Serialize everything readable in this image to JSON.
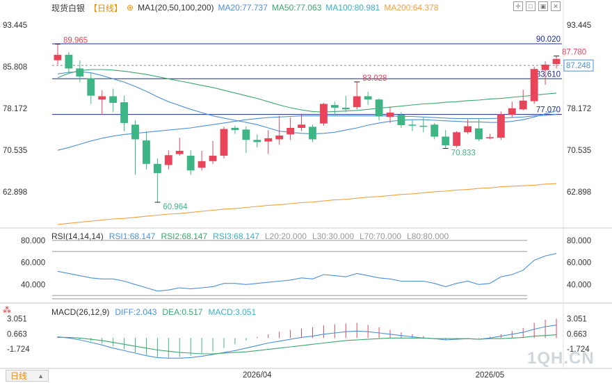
{
  "header": {
    "symbol": "现货白银",
    "timeframe": "【日线】",
    "timeframe_icon": "plus-circle-icon",
    "ma_label": "MA1(20,50,100,200)",
    "ma20": "MA20:77.737",
    "ma50": "MA50:77.063",
    "ma100": "MA100:80.981",
    "ma200": "MA200:64.378"
  },
  "rsi_header": {
    "title": "RSI(14,14,14)",
    "rsi1": "RSI1:68.147",
    "rsi2": "RSI2:68.147",
    "rsi3": "RSI3:68.147",
    "l20": "L20:20.000",
    "l30": "L30:30.000",
    "l70": "L70:70.000",
    "l80": "L80:80.000"
  },
  "macd_header": {
    "title": "MACD(26,12,9)",
    "diff": "DIFF:2.043",
    "dea": "DEA:0.517",
    "macd": "MACD:3.051"
  },
  "timeframe_tab": "日线",
  "watermark": "1QH.CN",
  "colors": {
    "up": "#e8455b",
    "down": "#3db585",
    "ma20": "#4a90d9",
    "ma50": "#3aa86b",
    "ma200": "#f0a040",
    "hline": "#1a2a9a"
  },
  "chart_data": [
    {
      "type": "candlestick",
      "title": "",
      "ylim": [
        56.5,
        95.5
      ],
      "y_ticks": [
        "93.445",
        "85.808",
        "78.172",
        "70.535",
        "62.898"
      ],
      "x_ticks": [
        {
          "label": "2026/04",
          "index": 18
        },
        {
          "label": "2026/05",
          "index": 39
        }
      ],
      "current_price": "87.248",
      "annotations": [
        {
          "text": "89.965",
          "index": 0,
          "value": 89.965
        },
        {
          "text": "60.964",
          "index": 9,
          "value": 60.964
        },
        {
          "text": "83.028",
          "index": 27,
          "value": 83.028
        },
        {
          "text": "70.833",
          "index": 35,
          "value": 70.833
        },
        {
          "text": "87.780",
          "index": 45,
          "value": 87.78
        }
      ],
      "hlines": [
        {
          "value": 90.02,
          "label": "90.020"
        },
        {
          "value": 83.61,
          "label": "83.610"
        },
        {
          "value": 77.07,
          "label": "77.070"
        }
      ],
      "candles": [
        [
          87.0,
          88.0,
          89.965,
          86.2
        ],
        [
          88.0,
          85.5,
          88.5,
          84.5
        ],
        [
          85.5,
          84.0,
          87.0,
          83.0
        ],
        [
          83.7,
          80.5,
          84.7,
          79.0
        ],
        [
          79.8,
          80.4,
          81.5,
          77.0
        ],
        [
          80.4,
          79.2,
          81.8,
          77.5
        ],
        [
          79.3,
          75.5,
          80.5,
          74.0
        ],
        [
          75.2,
          72.5,
          76.0,
          66.0
        ],
        [
          72.3,
          68.0,
          74.0,
          67.0
        ],
        [
          68.0,
          66.3,
          69.0,
          60.964
        ],
        [
          67.8,
          69.6,
          70.5,
          67.0
        ],
        [
          69.8,
          70.4,
          72.8,
          69.5
        ],
        [
          69.5,
          66.8,
          70.5,
          66.0
        ],
        [
          67.3,
          68.5,
          70.4,
          66.8
        ],
        [
          68.5,
          69.5,
          72.2,
          68.0
        ],
        [
          69.5,
          74.4,
          74.8,
          69.0
        ],
        [
          74.6,
          74.2,
          75.0,
          73.5
        ],
        [
          74.3,
          72.4,
          74.9,
          70.0
        ],
        [
          72.4,
          72.0,
          73.4,
          71.0
        ],
        [
          72.1,
          72.7,
          74.2,
          69.8
        ],
        [
          72.5,
          73.2,
          76.8,
          71.5
        ],
        [
          73.4,
          74.6,
          76.5,
          72.4
        ],
        [
          74.6,
          75.2,
          77.2,
          74.0
        ],
        [
          74.8,
          72.5,
          75.2,
          72.0
        ],
        [
          75.4,
          79.0,
          79.2,
          75.0
        ],
        [
          78.8,
          78.3,
          79.4,
          77.0
        ],
        [
          78.3,
          78.0,
          80.5,
          77.5
        ],
        [
          78.4,
          80.4,
          83.028,
          78.0
        ],
        [
          80.4,
          79.8,
          81.2,
          78.8
        ],
        [
          79.8,
          76.7,
          80.0,
          76.0
        ],
        [
          76.6,
          77.4,
          78.5,
          75.5
        ],
        [
          77.0,
          75.1,
          77.5,
          74.6
        ],
        [
          75.2,
          75.0,
          76.0,
          74.0
        ],
        [
          75.0,
          74.8,
          76.5,
          73.8
        ],
        [
          75.2,
          73.0,
          75.5,
          72.5
        ],
        [
          73.0,
          71.4,
          74.2,
          70.833
        ],
        [
          71.3,
          73.8,
          74.0,
          71.0
        ],
        [
          73.8,
          74.9,
          76.2,
          73.5
        ],
        [
          74.5,
          72.5,
          76.2,
          72.2
        ],
        [
          72.7,
          72.9,
          73.5,
          72.5
        ],
        [
          72.8,
          77.1,
          77.6,
          72.4
        ],
        [
          77.0,
          78.2,
          79.4,
          76.5
        ],
        [
          78.0,
          79.6,
          81.6,
          77.8
        ],
        [
          79.5,
          85.4,
          85.8,
          79.0
        ],
        [
          85.2,
          86.2,
          86.8,
          82.5
        ],
        [
          86.3,
          87.248,
          87.78,
          85.5
        ]
      ],
      "ma20": [
        84.5,
        84.8,
        84.9,
        84.7,
        84.2,
        83.6,
        83.0,
        82.2,
        81.3,
        80.3,
        79.4,
        78.7,
        78.0,
        77.4,
        76.8,
        76.4,
        76.0,
        75.6,
        75.2,
        74.6,
        74.0,
        73.8,
        73.6,
        73.5,
        73.6,
        73.8,
        74.2,
        74.6,
        75.1,
        75.5,
        75.8,
        76.0,
        76.1,
        76.1,
        76.0,
        75.9,
        75.8,
        75.7,
        75.7,
        75.6,
        75.6,
        75.8,
        76.1,
        76.6,
        77.2,
        77.737
      ],
      "ma50": [
        70.5,
        71.0,
        71.6,
        72.2,
        72.7,
        73.1,
        73.4,
        73.6,
        73.8,
        74.0,
        74.2,
        74.4,
        74.6,
        74.9,
        75.2,
        75.5,
        75.8,
        76.1,
        76.3,
        76.5,
        76.6,
        76.7,
        76.8,
        76.8,
        76.8,
        76.8,
        76.8,
        76.8,
        76.8,
        76.8,
        76.8,
        76.7,
        76.7,
        76.6,
        76.5,
        76.4,
        76.3,
        76.3,
        76.3,
        76.3,
        76.4,
        76.5,
        76.6,
        76.8,
        76.9,
        77.063
      ],
      "ma100": [
        83.8,
        84.6,
        85.1,
        85.3,
        85.3,
        85.2,
        85.0,
        84.7,
        84.4,
        84.0,
        83.6,
        83.2,
        82.8,
        82.4,
        82.0,
        81.5,
        81.0,
        80.5,
        80.0,
        79.4,
        78.8,
        78.3,
        77.9,
        77.6,
        77.5,
        77.6,
        77.7,
        77.8,
        78.0,
        78.2,
        78.4,
        78.6,
        78.8,
        79.0,
        79.1,
        79.3,
        79.4,
        79.6,
        79.7,
        79.9,
        80.0,
        80.2,
        80.4,
        80.6,
        80.8,
        80.981
      ],
      "ma200": [
        56.9,
        57.1,
        57.3,
        57.5,
        57.7,
        57.9,
        58.0,
        58.2,
        58.4,
        58.6,
        58.8,
        58.9,
        59.1,
        59.3,
        59.5,
        59.7,
        59.8,
        60.0,
        60.2,
        60.4,
        60.5,
        60.7,
        60.9,
        61.0,
        61.2,
        61.4,
        61.5,
        61.7,
        61.9,
        62.0,
        62.2,
        62.4,
        62.5,
        62.7,
        62.9,
        63.0,
        63.2,
        63.3,
        63.5,
        63.6,
        63.8,
        63.9,
        64.0,
        64.1,
        64.3,
        64.378
      ]
    },
    {
      "type": "line",
      "title": "RSI(14,14,14)",
      "ylim": [
        25,
        85
      ],
      "y_ticks": [
        "80.000",
        "60.000",
        "40.000"
      ],
      "levels": [
        20,
        30,
        70,
        80
      ],
      "series": [
        {
          "name": "RSI1",
          "values": [
            52,
            50,
            48,
            46,
            45,
            45,
            43,
            40,
            37,
            34,
            35,
            37,
            36,
            37,
            38,
            41,
            41,
            40,
            41,
            42,
            43,
            44,
            46,
            45,
            49,
            48,
            47,
            50,
            48,
            46,
            45,
            43,
            43,
            43,
            41,
            38,
            41,
            43,
            40,
            41,
            47,
            49,
            53,
            62,
            66,
            68.147
          ]
        }
      ]
    },
    {
      "type": "bar",
      "title": "MACD(26,12,9)",
      "ylim": [
        -4.6,
        4.0
      ],
      "y_ticks": [
        "3.051",
        "0.663",
        "-1.724"
      ],
      "hist": [
        0.2,
        0.1,
        -0.2,
        -0.5,
        -0.9,
        -1.3,
        -1.8,
        -2.3,
        -2.7,
        -3.0,
        -3.1,
        -3.0,
        -2.8,
        -2.5,
        -2.1,
        -1.6,
        -1.0,
        -0.4,
        0.2,
        0.6,
        1.0,
        1.3,
        1.5,
        1.7,
        2.0,
        2.2,
        2.3,
        2.4,
        2.1,
        1.7,
        1.3,
        0.9,
        0.6,
        0.3,
        0.0,
        -0.3,
        -0.2,
        0.0,
        -0.1,
        0.2,
        0.6,
        1.1,
        1.6,
        2.4,
        2.9,
        3.051
      ],
      "diff": [
        0.2,
        0.0,
        -0.3,
        -0.7,
        -1.1,
        -1.6,
        -2.0,
        -2.4,
        -2.8,
        -3.1,
        -3.2,
        -3.2,
        -3.1,
        -2.9,
        -2.6,
        -2.3,
        -2.0,
        -1.6,
        -1.2,
        -0.8,
        -0.5,
        -0.2,
        0.1,
        0.3,
        0.6,
        0.8,
        1.0,
        1.1,
        1.0,
        0.8,
        0.6,
        0.4,
        0.2,
        0.0,
        -0.1,
        -0.3,
        -0.2,
        -0.1,
        -0.2,
        0.0,
        0.3,
        0.6,
        0.9,
        1.4,
        1.8,
        2.043
      ],
      "dea": [
        0.1,
        0.1,
        0.0,
        -0.2,
        -0.4,
        -0.7,
        -1.0,
        -1.3,
        -1.6,
        -1.9,
        -2.1,
        -2.3,
        -2.4,
        -2.5,
        -2.5,
        -2.4,
        -2.3,
        -2.2,
        -2.0,
        -1.8,
        -1.6,
        -1.4,
        -1.2,
        -1.0,
        -0.8,
        -0.6,
        -0.4,
        -0.3,
        -0.2,
        -0.1,
        0.0,
        0.0,
        0.0,
        0.0,
        -0.1,
        -0.1,
        -0.1,
        -0.1,
        -0.2,
        -0.1,
        -0.1,
        0.0,
        0.1,
        0.3,
        0.4,
        0.517
      ]
    }
  ]
}
